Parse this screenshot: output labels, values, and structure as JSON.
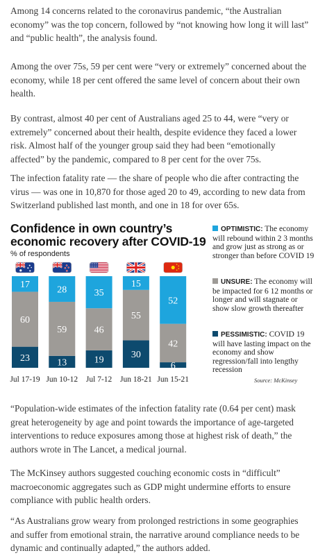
{
  "article": {
    "p1": "Among 14 concerns related to the coronavirus pandemic, “the Australian economy” was the top concern, followed by “not knowing how long it will last” and “public health”, the analysis found.",
    "p2": "Among the over 75s, 59 per cent were “very or extremely” concerned about the economy, while 18 per cent offered the same level of concern about their own health.",
    "p3": "By contrast, almost 40 per cent of Australians aged 25 to 44, were “very or extremely” concerned about their health, despite evidence they faced a lower risk. Almost half of the younger group said they had been “emotionally affected” by the pandemic, compared to 8 per cent for the over 75s.",
    "p4": "The infection fatality rate — the share of people who die after contracting the virus — was one in 10,870 for those aged 20 to 49, according to new data from Switzerland published last month, and one in 18 for over 65s.",
    "p5": "“Population-wide estimates of the infection fatality rate (0.64 per cent) mask great heterogeneity by age and point towards the importance of age-targeted interventions to reduce exposures among those at highest risk of death,” the authors wrote in The Lancet, a medical journal.",
    "p6": "The McKinsey authors suggested couching economic costs in “difficult” macroeconomic aggregates such as GDP might undermine efforts to ensure compliance with public health orders.",
    "p7": "“As Australians grow weary from prolonged restrictions in some geographies and suffer from emotional strain, the narrative around compliance needs to be dynamic and continually adapted,” the authors added."
  },
  "chart_data": {
    "type": "bar",
    "stacked": true,
    "title": "Confidence in own country’s economic recovery after COVID-19",
    "subtitle": "% of respondents",
    "categories": [
      "Jul 17-19",
      "Jun 10-12",
      "Jul 7-12",
      "Jun 18-21",
      "Jun 15-21"
    ],
    "flags": [
      "australia-flag",
      "new-zealand-flag",
      "usa-flag",
      "uk-flag",
      "china-flag"
    ],
    "ylim": [
      0,
      100
    ],
    "series": [
      {
        "name": "PESSIMISTIC",
        "color": "#0d4a6e",
        "values": [
          23,
          13,
          19,
          30,
          6
        ]
      },
      {
        "name": "UNSURE",
        "color": "#9e9b97",
        "values": [
          60,
          59,
          46,
          55,
          42
        ]
      },
      {
        "name": "OPTIMISTIC",
        "color": "#1ea5dd",
        "values": [
          17,
          28,
          35,
          15,
          52
        ]
      }
    ],
    "legend": {
      "placement": "right",
      "items": [
        {
          "head": "OPTIMISTIC:",
          "text": "The economy will rebound within 2 3 months and grow just as strong as or stronger than before COVID 19",
          "color": "#1ea5dd"
        },
        {
          "head": "UNSURE:",
          "text": "The economy will be impacted for 6 12 months or longer and will stagnate or show slow growth thereafter",
          "color": "#9e9b97"
        },
        {
          "head": "PESSIMISTIC:",
          "text": "COVID 19 will have lasting impact on the economy and show regression/fall into lengthy recession",
          "color": "#0d4a6e"
        }
      ]
    },
    "source": "Source: McKinsey"
  }
}
